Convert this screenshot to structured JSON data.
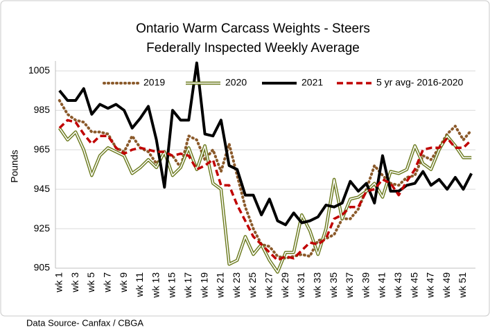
{
  "chart_data": {
    "type": "line",
    "title": "Ontario Warm Carcass Weights - Steers",
    "subtitle": "Federally Inspected Weekly Average",
    "y_label": "Pounds",
    "source": "Data Source- Canfax / CBGA",
    "categories": [
      "wk 1",
      null,
      "wk 3",
      null,
      "wk 5",
      null,
      "wk 7",
      null,
      "wk 9",
      null,
      "wk 11",
      null,
      "wk 13",
      null,
      "wk 15",
      null,
      "wk 17",
      null,
      "wk 19",
      null,
      "wk 21",
      null,
      "wk 23",
      null,
      "wk 25",
      null,
      "wk 27",
      null,
      "wk 29",
      null,
      "wk 31",
      null,
      "wk 33",
      null,
      "wk 35",
      null,
      "wk 37",
      null,
      "wk 39",
      null,
      "wk 41",
      null,
      "wk 43",
      null,
      "wk 45",
      null,
      "wk 47",
      null,
      "wk 49",
      null,
      "wk 51",
      null
    ],
    "series": [
      {
        "name": "2019",
        "color": "#8b5a2b",
        "style": "dotted",
        "values": [
          990,
          983,
          980,
          979,
          974,
          974,
          973,
          966,
          964,
          972,
          966,
          964,
          958,
          963,
          962,
          956,
          972,
          970,
          960,
          965,
          954,
          968,
          952,
          936,
          925,
          917,
          916,
          911,
          910,
          911,
          912,
          911,
          919,
          920,
          922,
          930,
          930,
          935,
          945,
          957,
          952,
          948,
          947,
          951,
          952,
          962,
          960,
          966,
          973,
          977,
          970,
          975
        ]
      },
      {
        "name": "2020",
        "color": "#6b7a1e",
        "style": "double",
        "values": [
          976,
          970,
          974,
          965,
          952,
          962,
          966,
          964,
          962,
          953,
          956,
          960,
          956,
          964,
          952,
          956,
          966,
          955,
          967,
          948,
          945,
          907,
          909,
          921,
          912,
          917,
          909,
          903,
          913,
          913,
          932,
          924,
          912,
          925,
          950,
          930,
          940,
          941,
          944,
          948,
          941,
          954,
          953,
          955,
          967,
          958,
          955,
          965,
          972,
          967,
          961,
          961
        ]
      },
      {
        "name": "2021",
        "color": "#000000",
        "style": "solid",
        "values": [
          995,
          990,
          990,
          996,
          983,
          988,
          986,
          988,
          985,
          976,
          981,
          987,
          970,
          946,
          985,
          980,
          980,
          1009,
          973,
          972,
          980,
          957,
          955,
          942,
          942,
          932,
          940,
          929,
          927,
          933,
          928,
          929,
          931,
          937,
          936,
          938,
          949,
          944,
          948,
          938,
          962,
          944,
          944,
          947,
          948,
          954,
          947,
          950,
          945,
          951,
          945,
          953
        ]
      },
      {
        "name": "5 yr avg- 2016-2020",
        "color": "#c00000",
        "style": "dashed",
        "values": [
          976,
          980,
          979,
          973,
          968,
          972,
          972,
          966,
          963,
          965,
          966,
          965,
          964,
          964,
          962,
          963,
          962,
          955,
          957,
          960,
          947,
          947,
          937,
          929,
          921,
          917,
          913,
          909,
          911,
          910,
          914,
          918,
          917,
          920,
          930,
          932,
          936,
          936,
          944,
          945,
          950,
          948,
          942,
          949,
          955,
          965,
          966,
          966,
          971,
          966,
          966,
          970
        ]
      }
    ],
    "ylim": [
      905,
      1010
    ],
    "yticks": [
      905,
      925,
      945,
      965,
      985,
      1005
    ],
    "grid": true,
    "legend": "top"
  }
}
